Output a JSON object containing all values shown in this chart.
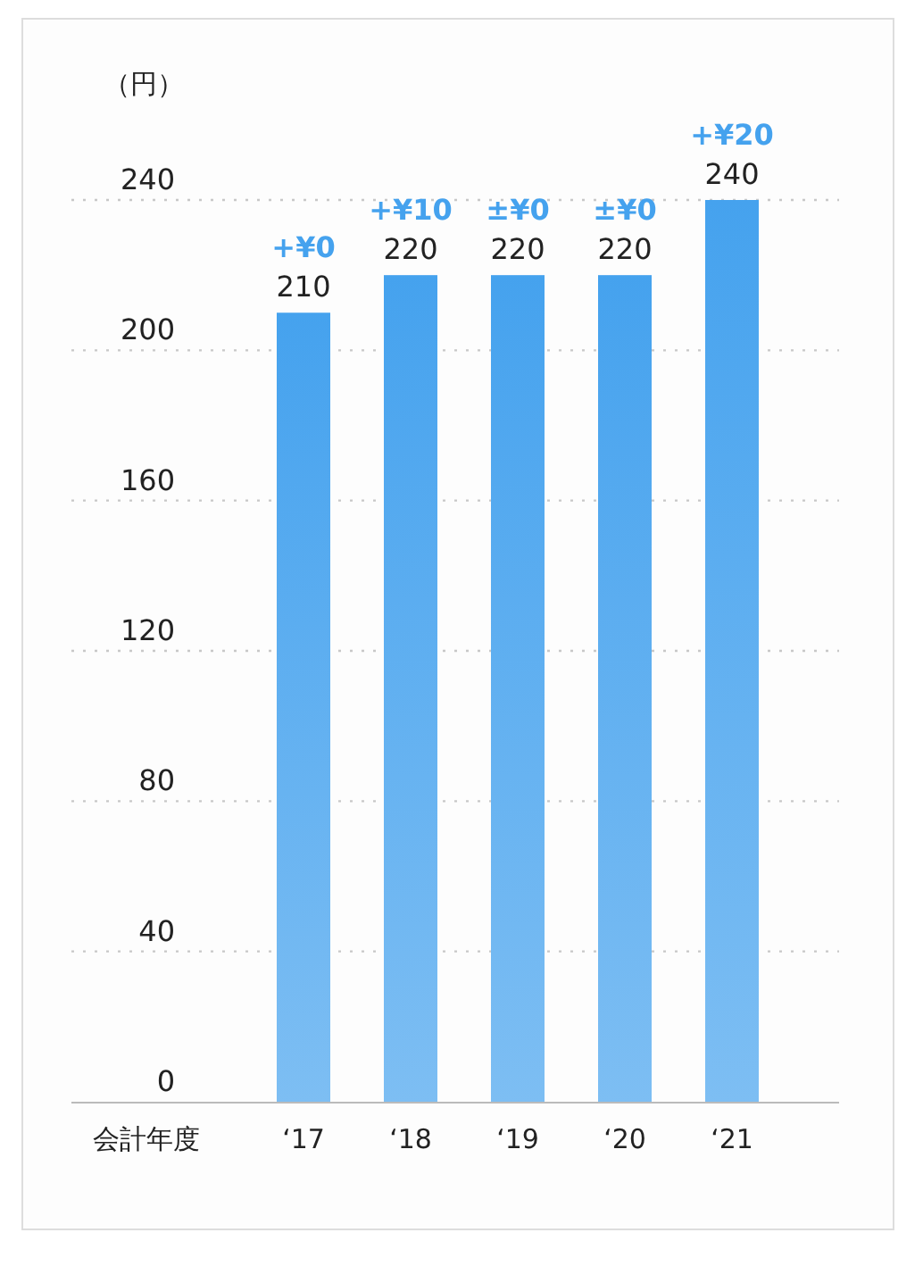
{
  "chart_data": {
    "type": "bar",
    "ylabel": "（円）",
    "xlabel": "会計年度",
    "categories": [
      "‘17",
      "‘18",
      "‘19",
      "‘20",
      "‘21"
    ],
    "values": [
      210,
      220,
      220,
      220,
      240
    ],
    "color": "#45a2ee",
    "ylim": [
      0,
      240
    ],
    "yticks": [
      0,
      40,
      80,
      120,
      160,
      200,
      240
    ],
    "grid": "y",
    "data_labels": true,
    "annotations": [
      {
        "text": "+¥0",
        "x": "‘17",
        "y": 210
      },
      {
        "text": "+¥10",
        "x": "‘18",
        "y": 220
      },
      {
        "text": "±¥0",
        "x": "‘19",
        "y": 220
      },
      {
        "text": "±¥0",
        "x": "‘20",
        "y": 220
      },
      {
        "text": "+¥20",
        "x": "‘21",
        "y": 240
      }
    ]
  }
}
